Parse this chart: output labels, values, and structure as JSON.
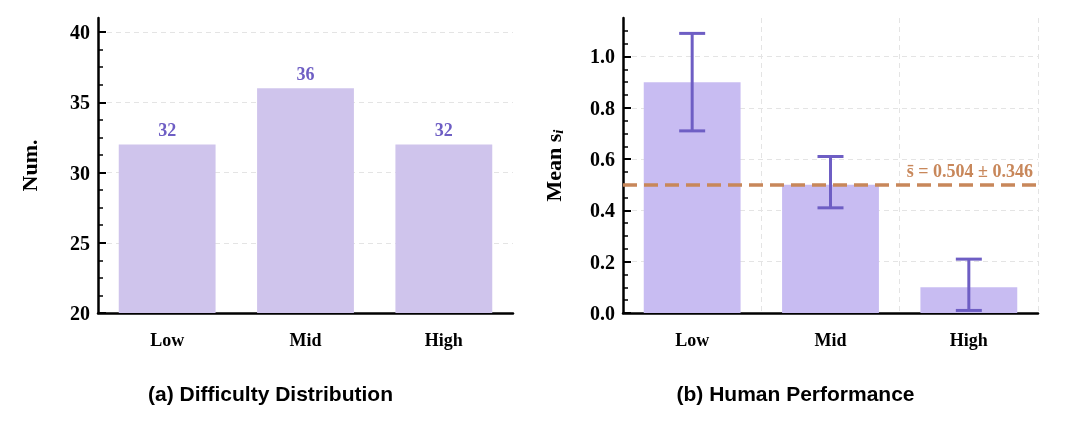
{
  "chart_data": [
    {
      "type": "bar",
      "title": "(a) Difficulty Distribution",
      "ylabel": "Num.",
      "categories": [
        "Low",
        "Mid",
        "High"
      ],
      "values": [
        32,
        36,
        32
      ],
      "color": "#cfc4ec",
      "data_labels": true,
      "ylim": [
        20,
        41
      ],
      "yticks": [
        20,
        25,
        30,
        35,
        40
      ],
      "grid": "y"
    },
    {
      "type": "bar",
      "title": "(b) Human Performance",
      "ylabel": "Mean s$_{i}$",
      "categories": [
        "Low",
        "Mid",
        "High"
      ],
      "values": [
        0.9,
        0.5,
        0.1
      ],
      "color": "#c8bcf2",
      "errors": [
        [
          0.71,
          1.09
        ],
        [
          0.41,
          0.61
        ],
        [
          0.01,
          0.21
        ]
      ],
      "ylim": [
        0,
        1.15
      ],
      "yticks": [
        {
          "value": 0,
          "label": "0.0"
        },
        0.2,
        0.4,
        0.6,
        0.8,
        {
          "value": 1,
          "label": "1.0"
        }
      ],
      "grid": true,
      "ref_lines": [
        {
          "axis": "y",
          "value": 0.504,
          "label": "s̄ = 0.504 ± 0.346",
          "color": "#c8875a",
          "line_style": "dashed"
        }
      ]
    }
  ]
}
